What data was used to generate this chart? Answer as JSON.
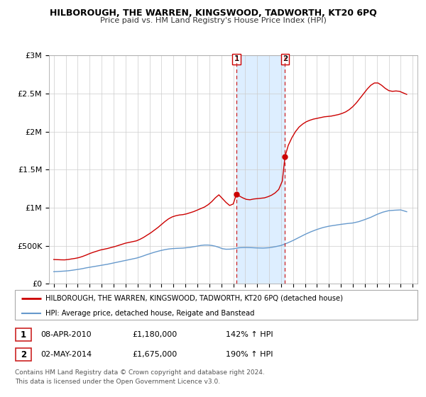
{
  "title": "HILBOROUGH, THE WARREN, KINGSWOOD, TADWORTH, KT20 6PQ",
  "subtitle": "Price paid vs. HM Land Registry's House Price Index (HPI)",
  "red_line_label": "HILBOROUGH, THE WARREN, KINGSWOOD, TADWORTH, KT20 6PQ (detached house)",
  "blue_line_label": "HPI: Average price, detached house, Reigate and Banstead",
  "annotation1": {
    "label": "1",
    "date": "08-APR-2010",
    "price": "£1,180,000",
    "hpi": "142% ↑ HPI",
    "x": 2010.27,
    "y_red": 1180000,
    "x_vline": 2010.27
  },
  "annotation2": {
    "label": "2",
    "date": "02-MAY-2014",
    "price": "£1,675,000",
    "hpi": "190% ↑ HPI",
    "x": 2014.33,
    "y_red": 1675000,
    "x_vline": 2014.33
  },
  "footnote1": "Contains HM Land Registry data © Crown copyright and database right 2024.",
  "footnote2": "This data is licensed under the Open Government Licence v3.0.",
  "yticks": [
    0,
    500000,
    1000000,
    1500000,
    2000000,
    2500000,
    3000000
  ],
  "ylabels": [
    "£0",
    "£500K",
    "£1M",
    "£1.5M",
    "£2M",
    "£2.5M",
    "£3M"
  ],
  "xmin": 1994.6,
  "xmax": 2025.4,
  "ymin": 0,
  "ymax": 3000000,
  "red_color": "#cc0000",
  "blue_color": "#6699cc",
  "vline_color": "#cc2222",
  "shade_color": "#ddeeff",
  "background_color": "#ffffff",
  "grid_color": "#cccccc",
  "red_data_x": [
    1995.0,
    1995.3,
    1995.6,
    1995.9,
    1996.2,
    1996.5,
    1996.8,
    1997.1,
    1997.4,
    1997.7,
    1998.0,
    1998.3,
    1998.6,
    1998.9,
    1999.2,
    1999.5,
    1999.8,
    2000.1,
    2000.4,
    2000.7,
    2001.0,
    2001.3,
    2001.6,
    2001.9,
    2002.2,
    2002.5,
    2002.8,
    2003.1,
    2003.4,
    2003.7,
    2004.0,
    2004.3,
    2004.6,
    2004.9,
    2005.2,
    2005.5,
    2005.8,
    2006.1,
    2006.4,
    2006.7,
    2007.0,
    2007.3,
    2007.6,
    2007.9,
    2008.2,
    2008.5,
    2008.8,
    2009.1,
    2009.4,
    2009.7,
    2010.0,
    2010.27,
    2010.5,
    2010.8,
    2011.1,
    2011.4,
    2011.7,
    2012.0,
    2012.3,
    2012.6,
    2012.9,
    2013.2,
    2013.5,
    2013.8,
    2014.1,
    2014.33,
    2014.6,
    2014.9,
    2015.2,
    2015.5,
    2015.8,
    2016.1,
    2016.4,
    2016.7,
    2017.0,
    2017.3,
    2017.6,
    2017.9,
    2018.2,
    2018.5,
    2018.8,
    2019.1,
    2019.4,
    2019.7,
    2020.0,
    2020.3,
    2020.6,
    2020.9,
    2021.2,
    2021.5,
    2021.8,
    2022.1,
    2022.4,
    2022.7,
    2023.0,
    2023.3,
    2023.6,
    2023.9,
    2024.2,
    2024.5
  ],
  "red_data_y": [
    320000,
    318000,
    316000,
    315000,
    320000,
    328000,
    335000,
    345000,
    360000,
    378000,
    398000,
    415000,
    430000,
    445000,
    455000,
    465000,
    478000,
    490000,
    505000,
    520000,
    535000,
    545000,
    555000,
    565000,
    585000,
    610000,
    640000,
    670000,
    705000,
    740000,
    780000,
    820000,
    855000,
    880000,
    895000,
    905000,
    910000,
    920000,
    935000,
    950000,
    970000,
    990000,
    1010000,
    1040000,
    1080000,
    1130000,
    1170000,
    1120000,
    1070000,
    1030000,
    1050000,
    1180000,
    1155000,
    1130000,
    1110000,
    1105000,
    1115000,
    1120000,
    1125000,
    1130000,
    1145000,
    1165000,
    1195000,
    1240000,
    1350000,
    1675000,
    1820000,
    1920000,
    2000000,
    2060000,
    2100000,
    2130000,
    2150000,
    2165000,
    2175000,
    2185000,
    2195000,
    2200000,
    2205000,
    2215000,
    2225000,
    2240000,
    2260000,
    2290000,
    2330000,
    2380000,
    2440000,
    2500000,
    2560000,
    2610000,
    2640000,
    2640000,
    2610000,
    2570000,
    2540000,
    2530000,
    2535000,
    2530000,
    2510000,
    2490000
  ],
  "blue_data_x": [
    1995.0,
    1995.3,
    1995.6,
    1995.9,
    1996.2,
    1996.5,
    1996.8,
    1997.1,
    1997.4,
    1997.7,
    1998.0,
    1998.3,
    1998.6,
    1998.9,
    1999.2,
    1999.5,
    1999.8,
    2000.1,
    2000.4,
    2000.7,
    2001.0,
    2001.3,
    2001.6,
    2001.9,
    2002.2,
    2002.5,
    2002.8,
    2003.1,
    2003.4,
    2003.7,
    2004.0,
    2004.3,
    2004.6,
    2004.9,
    2005.2,
    2005.5,
    2005.8,
    2006.1,
    2006.4,
    2006.7,
    2007.0,
    2007.3,
    2007.6,
    2007.9,
    2008.2,
    2008.5,
    2008.8,
    2009.1,
    2009.4,
    2009.7,
    2010.0,
    2010.5,
    2011.0,
    2011.5,
    2012.0,
    2012.5,
    2013.0,
    2013.5,
    2014.0,
    2014.5,
    2015.0,
    2015.5,
    2016.0,
    2016.5,
    2017.0,
    2017.5,
    2018.0,
    2018.5,
    2019.0,
    2019.5,
    2020.0,
    2020.5,
    2021.0,
    2021.5,
    2022.0,
    2022.5,
    2023.0,
    2023.5,
    2024.0,
    2024.5
  ],
  "blue_data_y": [
    160000,
    162000,
    165000,
    168000,
    172000,
    178000,
    185000,
    192000,
    200000,
    210000,
    218000,
    226000,
    234000,
    242000,
    250000,
    258000,
    268000,
    278000,
    288000,
    298000,
    308000,
    318000,
    328000,
    338000,
    352000,
    368000,
    385000,
    400000,
    415000,
    428000,
    440000,
    450000,
    458000,
    463000,
    466000,
    468000,
    470000,
    475000,
    480000,
    488000,
    496000,
    505000,
    510000,
    510000,
    505000,
    495000,
    480000,
    462000,
    455000,
    456000,
    460000,
    475000,
    478000,
    476000,
    472000,
    470000,
    475000,
    488000,
    505000,
    535000,
    570000,
    610000,
    650000,
    685000,
    715000,
    740000,
    758000,
    770000,
    782000,
    792000,
    800000,
    818000,
    845000,
    875000,
    912000,
    942000,
    962000,
    968000,
    972000,
    948000
  ]
}
